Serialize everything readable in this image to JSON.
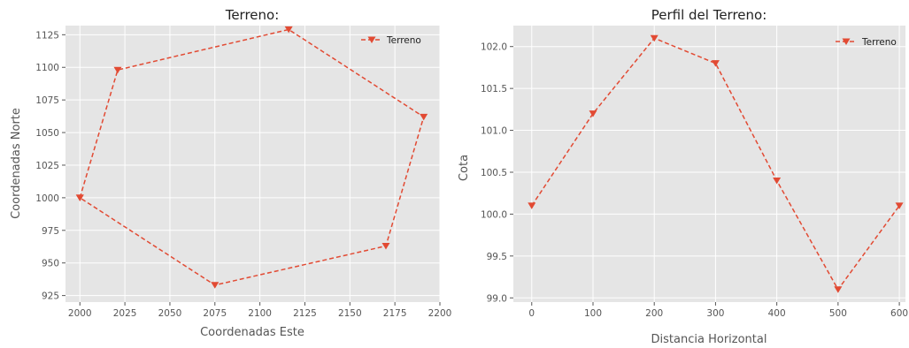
{
  "chart_data": [
    {
      "type": "line",
      "title": "Terreno:",
      "xlabel": "Coordenadas Este",
      "ylabel": "Coordenadas Norte",
      "xlim": [
        1992,
        2200
      ],
      "ylim": [
        920,
        1132
      ],
      "xticks": [
        2000,
        2025,
        2050,
        2075,
        2100,
        2125,
        2150,
        2175,
        2200
      ],
      "yticks": [
        925,
        950,
        975,
        1000,
        1025,
        1050,
        1075,
        1100,
        1125
      ],
      "grid": true,
      "legend_position": "top-right",
      "series": [
        {
          "name": "Terreno",
          "color": "#e24a33",
          "marker": "triangle-down",
          "linestyle": "dashed",
          "x": [
            2000,
            2021,
            2116,
            2191,
            2170,
            2075,
            2000
          ],
          "y": [
            1000,
            1098,
            1129,
            1062,
            963,
            933,
            1000
          ]
        }
      ]
    },
    {
      "type": "line",
      "title": "Perfil del Terreno:",
      "xlabel": "Distancia Horizontal",
      "ylabel": "Cota",
      "xlim": [
        -30,
        610
      ],
      "ylim": [
        98.95,
        102.25
      ],
      "xticks": [
        0,
        100,
        200,
        300,
        400,
        500,
        600
      ],
      "yticks": [
        99.0,
        99.5,
        100.0,
        100.5,
        101.0,
        101.5,
        102.0
      ],
      "ytick_labels": [
        "99.0",
        "99.5",
        "100.0",
        "100.5",
        "101.0",
        "101.5",
        "102.0"
      ],
      "grid": true,
      "legend_position": "top-right",
      "series": [
        {
          "name": "Terreno",
          "color": "#e24a33",
          "marker": "triangle-down",
          "linestyle": "dashed",
          "x": [
            0,
            100,
            200,
            300,
            400,
            500,
            600
          ],
          "y": [
            100.1,
            101.2,
            102.1,
            101.8,
            100.4,
            99.1,
            100.1
          ]
        }
      ]
    }
  ]
}
